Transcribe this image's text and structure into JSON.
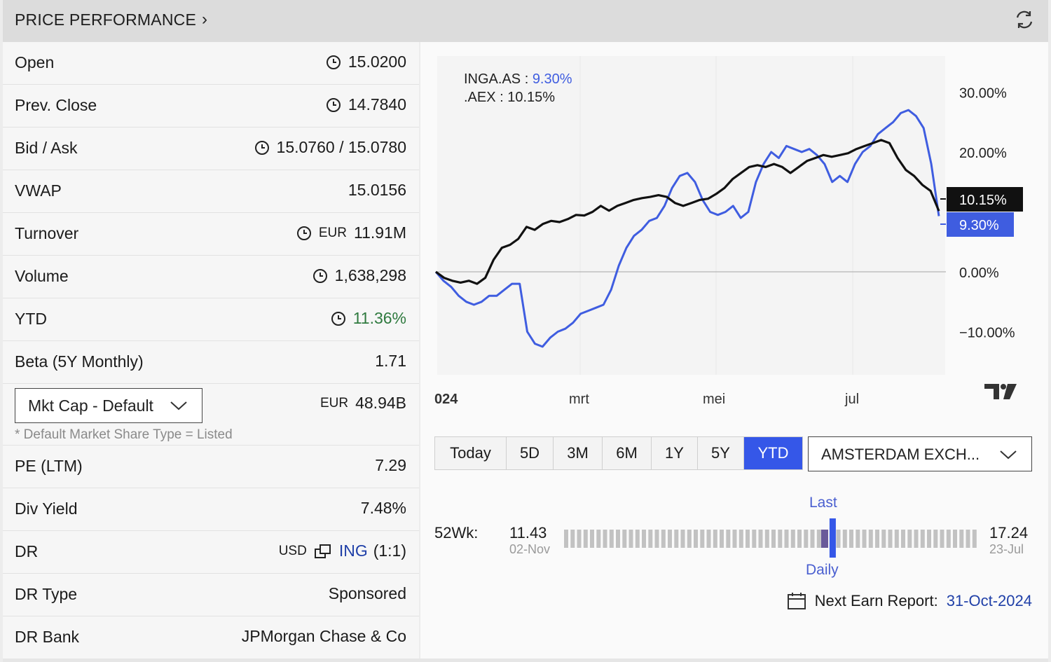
{
  "header": {
    "title": "PRICE PERFORMANCE",
    "chevron": "›",
    "refresh_icon": "refresh-icon"
  },
  "stats": [
    {
      "label": "Open",
      "value": "15.0200",
      "clock": true
    },
    {
      "label": "Prev. Close",
      "value": "14.7840",
      "clock": true
    },
    {
      "label": "Bid / Ask",
      "value": "15.0760 / 15.0780",
      "clock": true
    },
    {
      "label": "VWAP",
      "value": "15.0156",
      "clock": false
    },
    {
      "label": "Turnover",
      "prefix": "EUR",
      "value": "11.91M",
      "clock": true
    },
    {
      "label": "Volume",
      "value": "1,638,298",
      "clock": true
    },
    {
      "label": "YTD",
      "value": "11.36%",
      "clock": true,
      "color": "#2f7a3f"
    },
    {
      "label": "Beta (5Y Monthly)",
      "value": "1.71",
      "clock": false
    }
  ],
  "mktcap": {
    "select_label": "Mkt Cap - Default",
    "currency": "EUR",
    "value": "48.94B",
    "note": "* Default Market Share Type = Listed"
  },
  "stats2": [
    {
      "label": "PE (LTM)",
      "value": "7.29"
    },
    {
      "label": "Div Yield",
      "value": "7.48%"
    }
  ],
  "dr": {
    "label": "DR",
    "currency": "USD",
    "link": "ING",
    "ratio": "(1:1)"
  },
  "stats3": [
    {
      "label": "DR Type",
      "value": "Sponsored"
    },
    {
      "label": "DR Bank",
      "value": "JPMorgan Chase & Co"
    }
  ],
  "chart_data": {
    "type": "line",
    "legend": [
      {
        "name": "INGA.AS",
        "value": "9.30%",
        "color": "#3f5de0"
      },
      {
        "name": ".AEX",
        "value": "10.15%",
        "color": "#111111"
      }
    ],
    "y_ticks": [
      "30.00%",
      "20.00%",
      "0.00%",
      "−10.00%"
    ],
    "x_ticks": [
      "024",
      "mrt",
      "mei",
      "jul"
    ],
    "ylim": [
      -17,
      35
    ],
    "last_labels": [
      {
        "text": "10.15%",
        "value": 10.15,
        "bg": "#111111"
      },
      {
        "text": "9.30%",
        "value": 9.3,
        "bg": "#3f5de0"
      }
    ],
    "series": [
      {
        "name": "INGA.AS",
        "color": "#3f5de0",
        "values": [
          0,
          -1.5,
          -2.5,
          -4,
          -5,
          -5.5,
          -5,
          -4,
          -4,
          -3,
          -2,
          -2,
          -10,
          -12,
          -12.5,
          -11,
          -10,
          -9.5,
          -8.5,
          -7,
          -6.5,
          -6,
          -5.5,
          -3,
          1,
          4,
          6,
          7,
          8.5,
          9,
          11,
          14,
          16,
          16.5,
          15,
          12,
          10,
          9.5,
          10,
          11,
          9,
          10,
          15,
          18,
          20,
          19,
          21,
          20.5,
          20,
          20.5,
          19.5,
          18,
          15,
          16,
          15,
          18,
          20,
          21,
          23,
          24,
          25,
          26.5,
          27,
          26,
          24,
          18,
          9.3
        ]
      },
      {
        "name": ".AEX",
        "color": "#111111",
        "values": [
          0,
          -1,
          -1.5,
          -1.8,
          -1.5,
          -2,
          -1,
          2,
          4,
          4.5,
          5.5,
          7.5,
          7,
          8,
          8.5,
          8.3,
          8.8,
          9.5,
          9.4,
          10,
          11,
          10.2,
          11,
          11.5,
          12,
          12.3,
          12.5,
          12.8,
          12.5,
          11.5,
          11,
          11.5,
          12,
          12.2,
          13,
          14,
          15.5,
          16.5,
          17.5,
          17.8,
          17.5,
          18,
          17.5,
          16.5,
          17.5,
          18.5,
          19,
          19.5,
          19.2,
          19.5,
          19.8,
          20.5,
          21,
          21.5,
          22,
          21.5,
          19,
          17,
          16,
          14.5,
          13.5,
          10.15
        ]
      }
    ]
  },
  "ranges": [
    "Today",
    "5D",
    "3M",
    "6M",
    "1Y",
    "5Y",
    "YTD"
  ],
  "active_range": "YTD",
  "exchange": "AMSTERDAM EXCH...",
  "wk52": {
    "label": "52Wk:",
    "low": "11.43",
    "low_date": "02-Nov",
    "high": "17.24",
    "high_date": "23-Jul",
    "last_label": "Last",
    "daily_label": "Daily",
    "last_fraction": 0.64,
    "daily_fraction": 0.62
  },
  "earn": {
    "label": "Next Earn Report:",
    "date": "31-Oct-2024"
  },
  "colors": {
    "accent": "#3557e8",
    "green": "#2f7a3f",
    "link": "#2040a8"
  }
}
